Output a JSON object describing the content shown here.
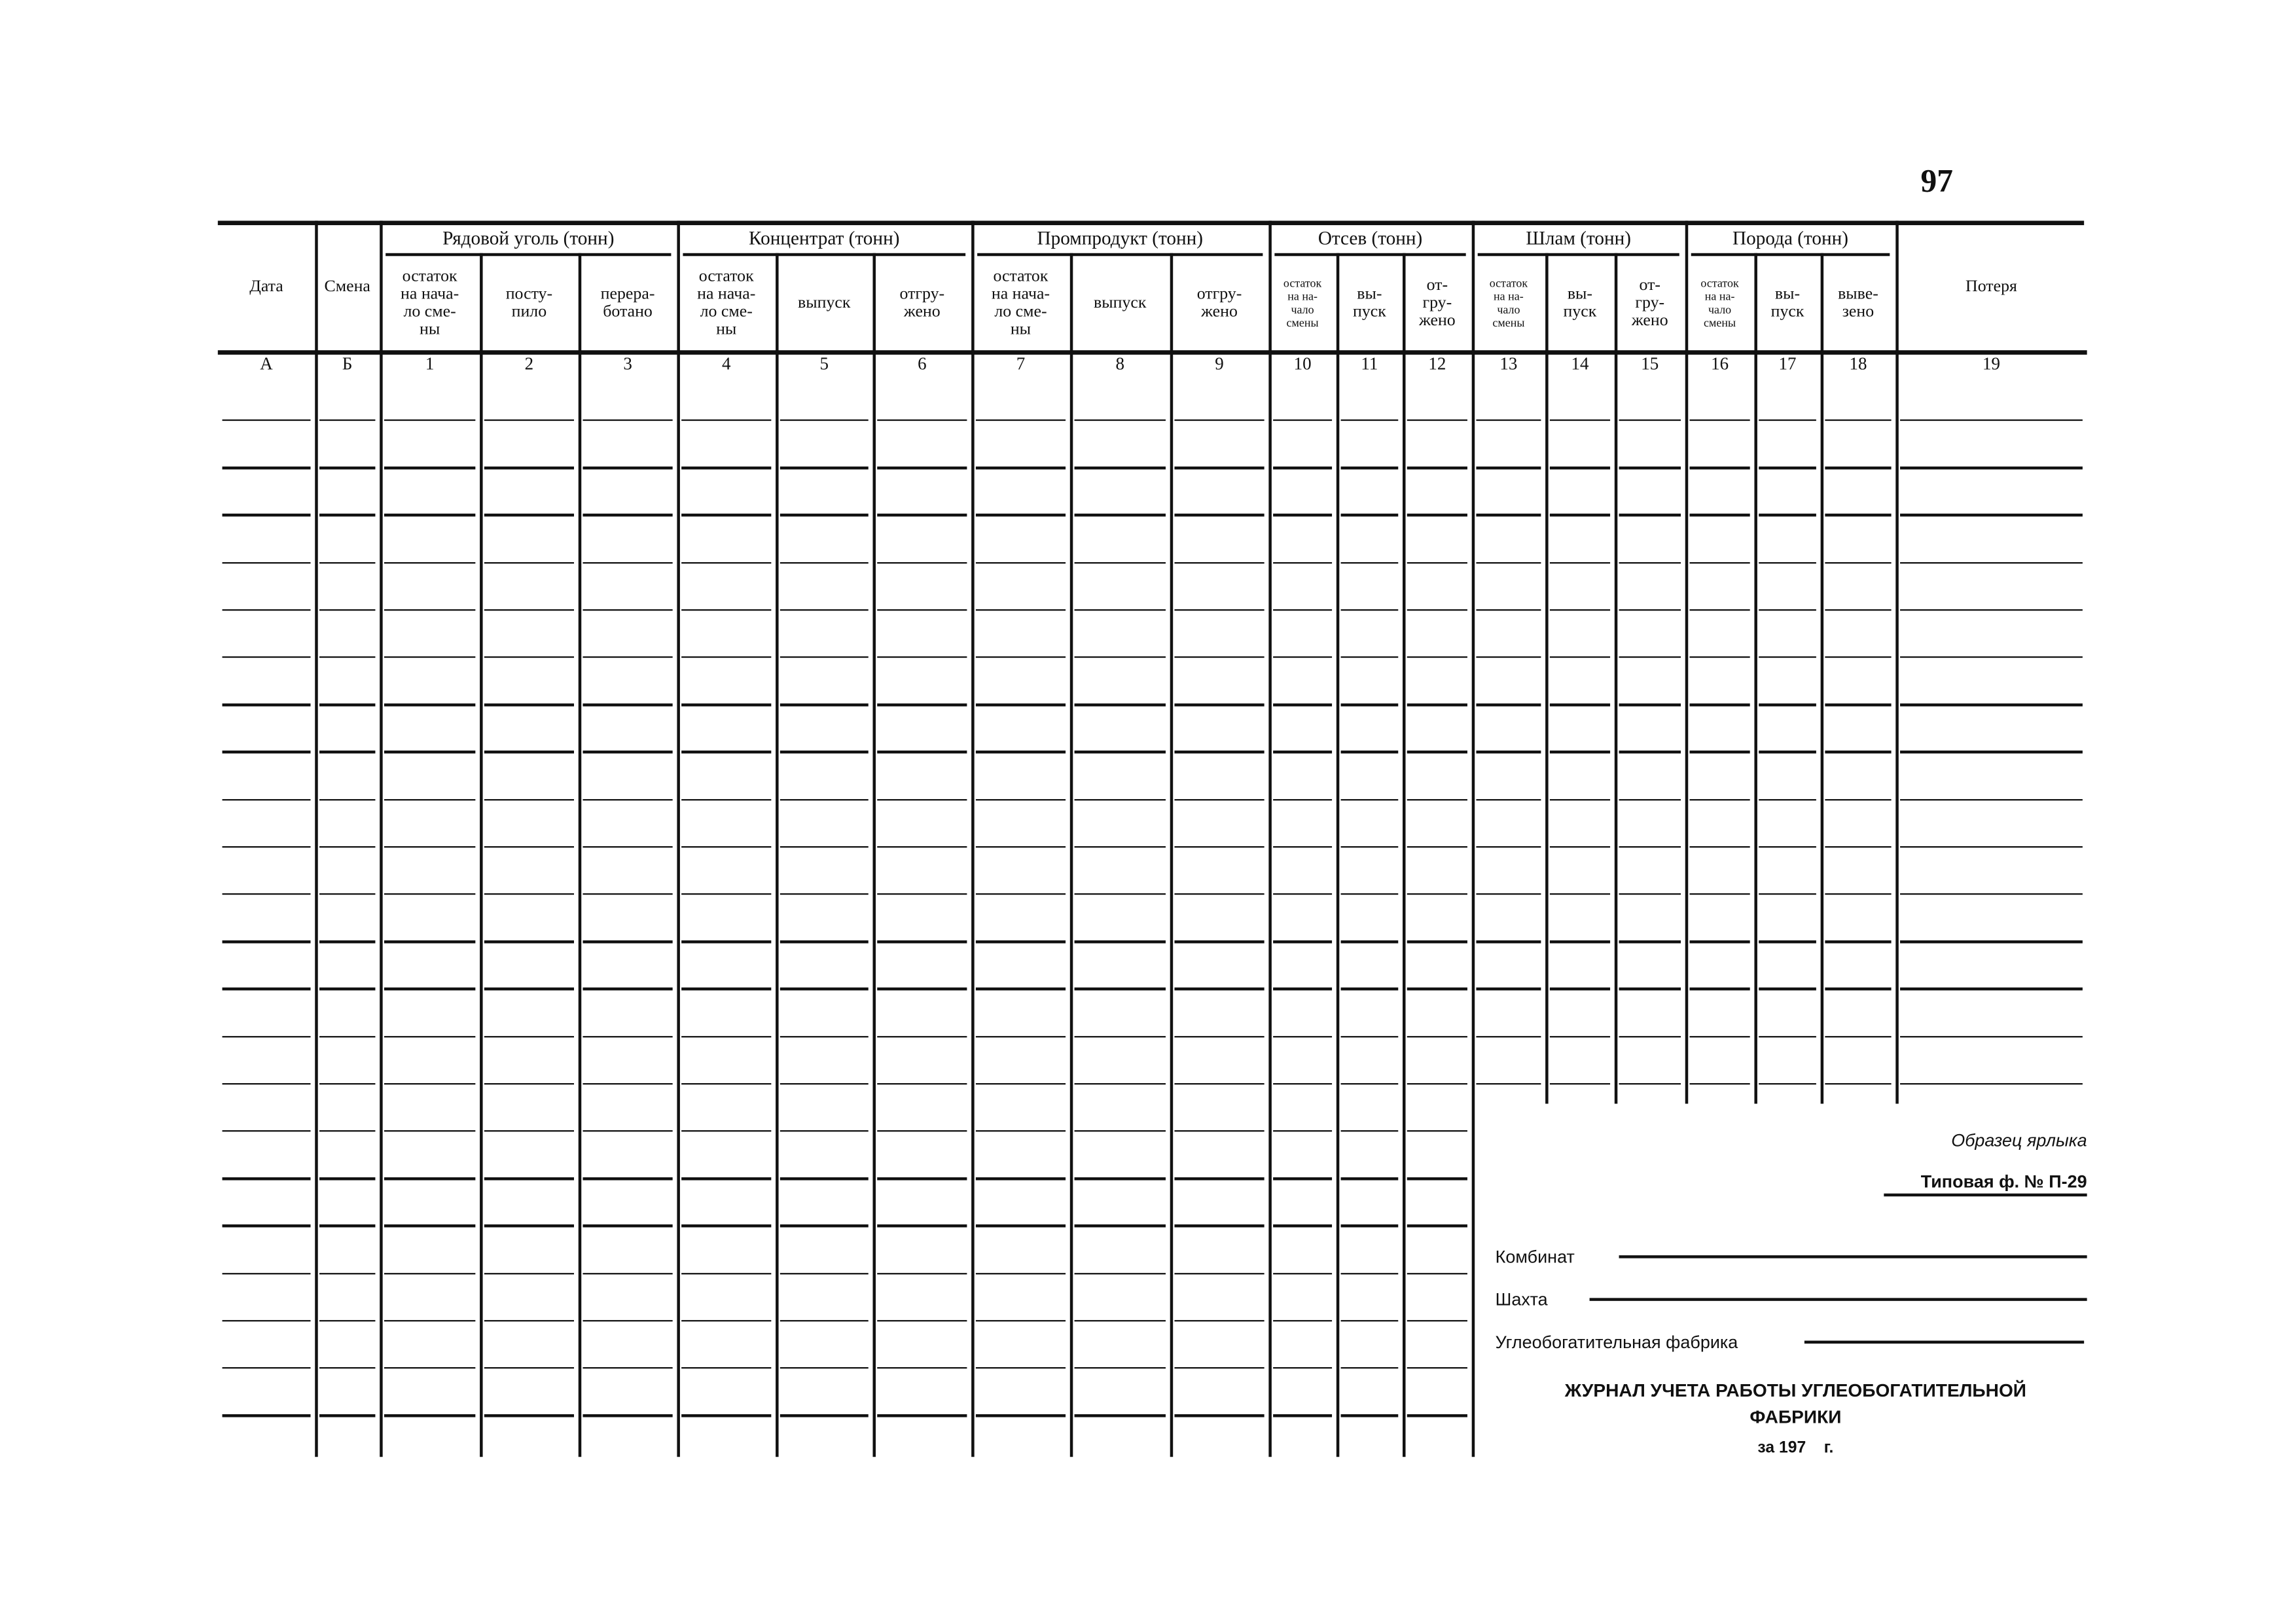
{
  "page_number": "97",
  "table": {
    "fixed_headers": [
      {
        "label": "Дата",
        "number": "А"
      },
      {
        "label": "Смена",
        "number": "Б"
      }
    ],
    "groups": [
      {
        "title": "Рядовой уголь (тонн)",
        "columns": [
          {
            "label": "остаток\nна нача-\nло сме-\nны",
            "number": "1"
          },
          {
            "label": "посту-\nпило",
            "number": "2"
          },
          {
            "label": "перера-\nботано",
            "number": "3"
          }
        ]
      },
      {
        "title": "Концентрат (тонн)",
        "columns": [
          {
            "label": "остаток\nна нача-\nло сме-\nны",
            "number": "4"
          },
          {
            "label": "выпуск",
            "number": "5"
          },
          {
            "label": "отгру-\nжено",
            "number": "6"
          }
        ]
      },
      {
        "title": "Промпродукт (тонн)",
        "columns": [
          {
            "label": "остаток\nна нача-\nло сме-\nны",
            "number": "7"
          },
          {
            "label": "выпуск",
            "number": "8"
          },
          {
            "label": "отгру-\nжено",
            "number": "9"
          }
        ]
      },
      {
        "title": "Отсев (тонн)",
        "columns": [
          {
            "label": "остаток\nна на-\nчало\nсмены",
            "number": "10"
          },
          {
            "label": "вы-\nпуск",
            "number": "11"
          },
          {
            "label": "от-\nгру-\nжено",
            "number": "12"
          }
        ]
      },
      {
        "title": "Шлам (тонн)",
        "columns": [
          {
            "label": "остаток\nна на-\nчало\nсмены",
            "number": "13"
          },
          {
            "label": "вы-\nпуск",
            "number": "14"
          },
          {
            "label": "от-\nгру-\nжено",
            "number": "15"
          }
        ]
      },
      {
        "title": "Порода (тонн)",
        "columns": [
          {
            "label": "остаток\nна на-\nчало\nсмены",
            "number": "16"
          },
          {
            "label": "вы-\nпуск",
            "number": "17"
          },
          {
            "label": "выве-\nзено",
            "number": "18"
          }
        ]
      }
    ],
    "last_column": {
      "label": "Потеря",
      "number": "19"
    }
  },
  "label_sample": {
    "caption": "Образец ярлыка",
    "form_number": "Типовая ф. № П-29",
    "fields": [
      {
        "label": "Комбинат",
        "value": ""
      },
      {
        "label": "Шахта",
        "value": ""
      },
      {
        "label": "Углеобогатительная фабрика",
        "value": ""
      }
    ],
    "title_line1": "ЖУРНАЛ УЧЕТА РАБОТЫ УГЛЕОБОГАТИТЕЛЬНОЙ",
    "title_line2": "ФАБРИКИ",
    "year_line": "за 197    г."
  }
}
